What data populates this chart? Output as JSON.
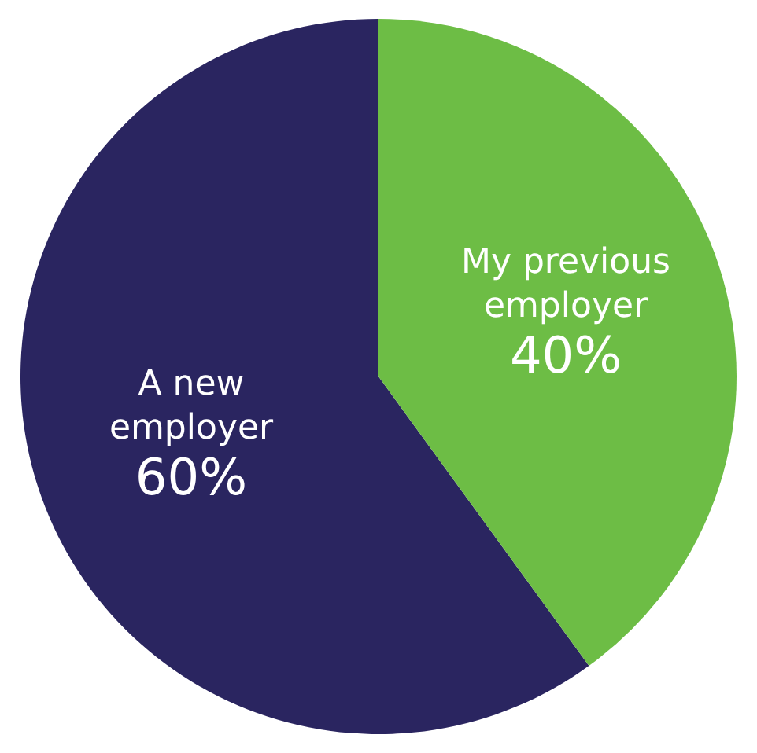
{
  "chart_data": {
    "type": "pie",
    "categories": [
      "A new employer",
      "My previous employer"
    ],
    "values": [
      60,
      40
    ],
    "colors": [
      "#2a2560",
      "#6dbd45"
    ],
    "value_labels": [
      "60%",
      "40%"
    ],
    "legend": false
  }
}
